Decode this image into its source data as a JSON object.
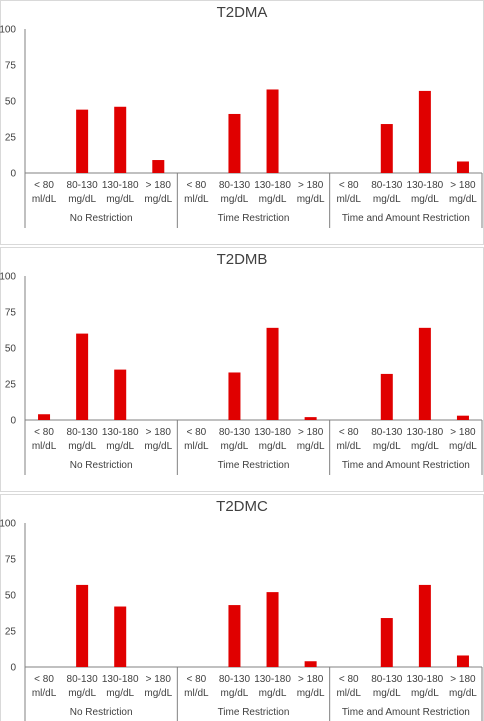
{
  "colors": {
    "bar": "#e00000",
    "axis": "#808080",
    "text": "#404040"
  },
  "chart_data": [
    {
      "type": "bar",
      "title": "T2DMA",
      "ylim": [
        0,
        100
      ],
      "yticks": [
        "0",
        "25",
        "50",
        "75",
        "100"
      ],
      "categories": [
        {
          "line1": "< 80",
          "line2": "ml/dL"
        },
        {
          "line1": "80-130",
          "line2": "mg/dL"
        },
        {
          "line1": "130-180",
          "line2": "mg/dL"
        },
        {
          "line1": "> 180",
          "line2": "mg/dL"
        }
      ],
      "groups": [
        {
          "label": "No Restriction",
          "values": [
            0,
            44,
            46,
            9
          ]
        },
        {
          "label": "Time Restriction",
          "values": [
            0,
            41,
            58,
            0
          ]
        },
        {
          "label": "Time and Amount Restriction",
          "values": [
            0,
            34,
            57,
            8
          ]
        }
      ]
    },
    {
      "type": "bar",
      "title": "T2DMB",
      "ylim": [
        0,
        100
      ],
      "yticks": [
        "0",
        "25",
        "50",
        "75",
        "100"
      ],
      "categories": [
        {
          "line1": "< 80",
          "line2": "ml/dL"
        },
        {
          "line1": "80-130",
          "line2": "mg/dL"
        },
        {
          "line1": "130-180",
          "line2": "mg/dL"
        },
        {
          "line1": "> 180",
          "line2": "mg/dL"
        }
      ],
      "groups": [
        {
          "label": "No Restriction",
          "values": [
            4,
            60,
            35,
            0
          ]
        },
        {
          "label": "Time Restriction",
          "values": [
            0,
            33,
            64,
            2
          ]
        },
        {
          "label": "Time and Amount Restriction",
          "values": [
            0,
            32,
            64,
            3
          ]
        }
      ]
    },
    {
      "type": "bar",
      "title": "T2DMC",
      "ylim": [
        0,
        100
      ],
      "yticks": [
        "0",
        "25",
        "50",
        "75",
        "100"
      ],
      "categories": [
        {
          "line1": "< 80",
          "line2": "ml/dL"
        },
        {
          "line1": "80-130",
          "line2": "mg/dL"
        },
        {
          "line1": "130-180",
          "line2": "mg/dL"
        },
        {
          "line1": "> 180",
          "line2": "mg/dL"
        }
      ],
      "groups": [
        {
          "label": "No Restriction",
          "values": [
            0,
            57,
            42,
            0
          ]
        },
        {
          "label": "Time Restriction",
          "values": [
            0,
            43,
            52,
            4
          ]
        },
        {
          "label": "Time and Amount Restriction",
          "values": [
            0,
            34,
            57,
            8
          ]
        }
      ]
    }
  ]
}
